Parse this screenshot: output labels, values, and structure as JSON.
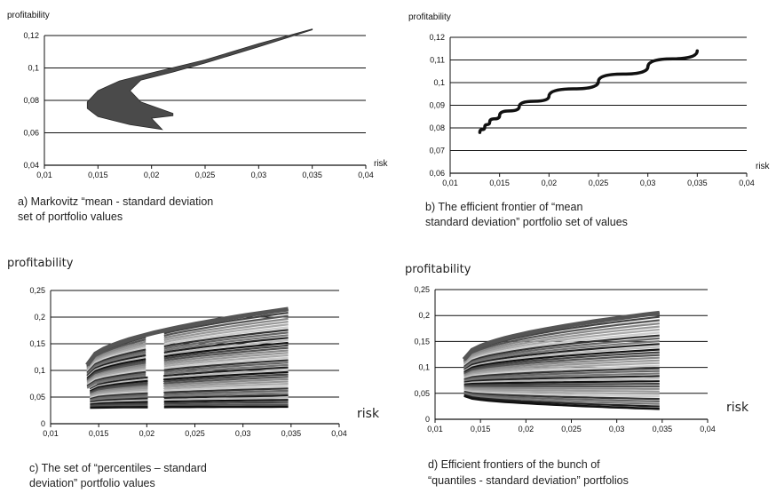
{
  "chart_data": [
    {
      "panel": "a",
      "type": "area",
      "ylabel": "profitability",
      "xlabel": "risk",
      "xlim": [
        0.01,
        0.04
      ],
      "ylim": [
        0.04,
        0.12
      ],
      "x_ticks": [
        "0,01",
        "0,015",
        "0,02",
        "0,025",
        "0,03",
        "0,035",
        "0,04"
      ],
      "y_ticks": [
        "0,04",
        "0,06",
        "0,08",
        "0,1",
        "0,12"
      ],
      "grid": "horizontal",
      "upper_boundary": {
        "x": [
          0.014,
          0.015,
          0.017,
          0.02,
          0.025,
          0.03,
          0.035
        ],
        "y": [
          0.079,
          0.086,
          0.092,
          0.097,
          0.105,
          0.115,
          0.124
        ]
      },
      "inner_boundary": {
        "x": [
          0.035,
          0.03,
          0.025,
          0.022,
          0.019,
          0.018,
          0.019,
          0.022
        ],
        "y": [
          0.1235,
          0.113,
          0.103,
          0.0975,
          0.0925,
          0.086,
          0.079,
          0.072
        ]
      },
      "lower_boundary": {
        "x": [
          0.022,
          0.02,
          0.021,
          0.018,
          0.015,
          0.014
        ],
        "y": [
          0.0705,
          0.069,
          0.062,
          0.065,
          0.07,
          0.075
        ]
      },
      "fill_color": "#4a4a4a",
      "caption": "a) Markovitz “mean - standard deviation set of portfolio values"
    },
    {
      "panel": "b",
      "type": "line",
      "ylabel": "profitability",
      "xlabel": "risk",
      "xlim": [
        0.01,
        0.04
      ],
      "ylim": [
        0.06,
        0.12
      ],
      "x_ticks": [
        "0,01",
        "0,015",
        "0,02",
        "0,025",
        "0,03",
        "0,035",
        "0,04"
      ],
      "y_ticks": [
        "0,06",
        "0,07",
        "0,08",
        "0,09",
        "0,1",
        "0,11",
        "0,12"
      ],
      "grid": "horizontal",
      "series": [
        {
          "x": [
            0.013,
            0.0135,
            0.014,
            0.015,
            0.017,
            0.02,
            0.025,
            0.03,
            0.035
          ],
          "y": [
            0.078,
            0.0805,
            0.0825,
            0.0855,
            0.0895,
            0.094,
            0.1005,
            0.107,
            0.114
          ]
        }
      ],
      "caption": "b) The efficient frontier of “mean standard deviation” portfolio set of values"
    },
    {
      "panel": "c",
      "type": "line",
      "ylabel": "profitability",
      "xlabel": "risk",
      "xlim": [
        0.01,
        0.04
      ],
      "ylim": [
        0,
        0.25
      ],
      "x_ticks": [
        "0,01",
        "0,015",
        "0,02",
        "0,025",
        "0,03",
        "0,035",
        "0,04"
      ],
      "y_ticks": [
        "0",
        "0,05",
        "0,1",
        "0,15",
        "0,2",
        "0,25"
      ],
      "grid": "horizontal",
      "bundle": {
        "x_start": 0.0138,
        "x_gap": [
          0.0205,
          0.0218
        ],
        "x_end": 0.0347,
        "curve_count": 40,
        "start_values": [
          0.11,
          0.03
        ],
        "end_values": [
          0.215,
          0.032
        ]
      },
      "caption": "c) The set of “percentiles – standard deviation” portfolio values"
    },
    {
      "panel": "d",
      "type": "line",
      "ylabel": "profitability",
      "xlabel": "risk",
      "xlim": [
        0.01,
        0.04
      ],
      "ylim": [
        0,
        0.25
      ],
      "x_ticks": [
        "0,01",
        "0,015",
        "0,02",
        "0,025",
        "0,03",
        "0,035",
        "0,04"
      ],
      "y_ticks": [
        "0",
        "0,05",
        "0,1",
        "0,15",
        "0,2",
        "0,25"
      ],
      "grid": "horizontal",
      "bundle": {
        "x_start": 0.0132,
        "x_end": 0.0347,
        "curve_count": 36,
        "start_values": [
          0.115,
          0.045
        ],
        "end_values": [
          0.205,
          0.02
        ]
      },
      "caption": "d) Efficient frontiers of the bunch of “quantiles - standard deviation” portfolios"
    }
  ]
}
